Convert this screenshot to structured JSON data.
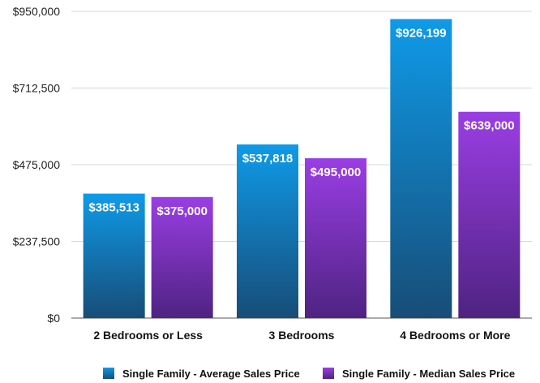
{
  "chart_data": {
    "type": "bar",
    "categories": [
      "2 Bedrooms or Less",
      "3 Bedrooms",
      "4 Bedrooms or More"
    ],
    "series": [
      {
        "name": "Single Family - Average Sales Price",
        "values": [
          385513,
          537818,
          926199
        ],
        "labels": [
          "$385,513",
          "$537,818",
          "$926,199"
        ],
        "color_top": "#0f9ae8",
        "color_bottom": "#174d78"
      },
      {
        "name": "Single Family - Median Sales Price",
        "values": [
          375000,
          495000,
          639000
        ],
        "labels": [
          "$375,000",
          "$495,000",
          "$639,000"
        ],
        "color_top": "#9a3ee4",
        "color_bottom": "#4f2382"
      }
    ],
    "ylim": [
      0,
      950000
    ],
    "yticks": [
      0,
      237500,
      475000,
      712500,
      950000
    ],
    "ytick_labels": [
      "$0",
      "$237,500",
      "$475,000",
      "$712,500",
      "$950,000"
    ],
    "grid": true,
    "legend_position": "bottom-center",
    "title": "",
    "xlabel": "",
    "ylabel": ""
  }
}
